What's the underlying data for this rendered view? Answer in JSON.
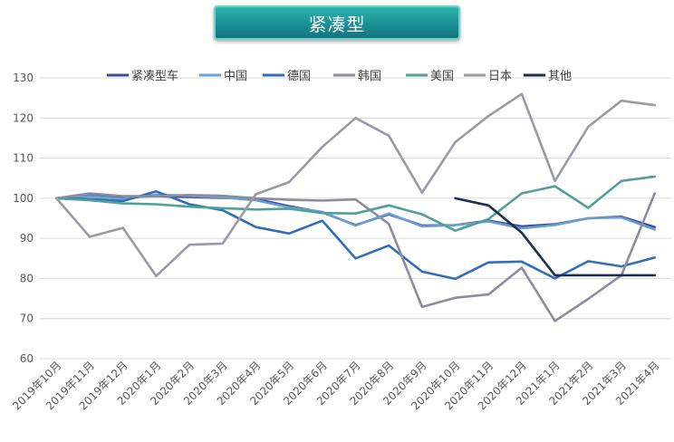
{
  "chart_data": {
    "type": "line",
    "title": "紧凑型",
    "xlabel": "",
    "ylabel": "",
    "ylim": [
      60,
      130
    ],
    "yticks": [
      60,
      70,
      80,
      90,
      100,
      110,
      120,
      130
    ],
    "grid": true,
    "legend_position": "top",
    "categories": [
      "2019年10月",
      "2019年11月",
      "2019年12月",
      "2020年1月",
      "2020年2月",
      "2020年3月",
      "2020年4月",
      "2020年5月",
      "2020年6月",
      "2020年7月",
      "2020年8月",
      "2020年9月",
      "2020年10月",
      "2020年11月",
      "2020年12月",
      "2021年1月",
      "2021年2月",
      "2021年3月",
      "2021年4月"
    ],
    "series": [
      {
        "name": "紧凑型车",
        "color": "#3b4ea0",
        "values": [
          100,
          100.8,
          100.3,
          100.5,
          100.3,
          100.1,
          99.8,
          98.0,
          96.5,
          93.3,
          96.0,
          93.2,
          93.3,
          94.4,
          93.0,
          93.5,
          95.0,
          95.4,
          92.8
        ]
      },
      {
        "name": "中国",
        "color": "#6a9fd0",
        "values": [
          100,
          100.5,
          99.8,
          100.9,
          100.6,
          100.2,
          99.5,
          97.7,
          96.6,
          93.2,
          96.2,
          93.0,
          93.3,
          94.2,
          92.5,
          93.3,
          95.0,
          95.2,
          92.2
        ]
      },
      {
        "name": "德国",
        "color": "#2e6fb7",
        "values": [
          100,
          99.8,
          99.3,
          101.7,
          98.5,
          97.0,
          92.8,
          91.2,
          94.4,
          85.0,
          88.2,
          81.7,
          79.9,
          84.0,
          84.2,
          80.0,
          84.3,
          83.0,
          85.2
        ]
      },
      {
        "name": "韩国",
        "color": "#8c8ca0",
        "values": [
          100,
          101.2,
          100.5,
          100.5,
          100.8,
          100.6,
          100.0,
          99.6,
          99.4,
          99.7,
          93.6,
          72.9,
          75.2,
          76.0,
          82.7,
          69.4,
          74.9,
          80.8,
          101.2
        ]
      },
      {
        "name": "美国",
        "color": "#4fa09b",
        "values": [
          100,
          99.5,
          98.7,
          98.5,
          97.9,
          97.5,
          97.2,
          97.4,
          96.3,
          96.2,
          98.2,
          96.0,
          91.9,
          94.8,
          101.2,
          103.0,
          97.6,
          104.3,
          105.4
        ]
      },
      {
        "name": "日本",
        "color": "#9a9aa6",
        "values": [
          100,
          90.4,
          92.6,
          80.6,
          88.4,
          88.7,
          101.0,
          104.0,
          112.8,
          120.0,
          115.6,
          101.4,
          114.0,
          120.5,
          126.0,
          104.3,
          117.8,
          124.3,
          123.2
        ]
      },
      {
        "name": "其他",
        "color": "#1f2d4e",
        "values": [
          null,
          null,
          null,
          null,
          null,
          null,
          null,
          null,
          null,
          null,
          null,
          null,
          100.0,
          98.2,
          91.4,
          80.8,
          80.8,
          80.8,
          80.8
        ]
      }
    ]
  }
}
